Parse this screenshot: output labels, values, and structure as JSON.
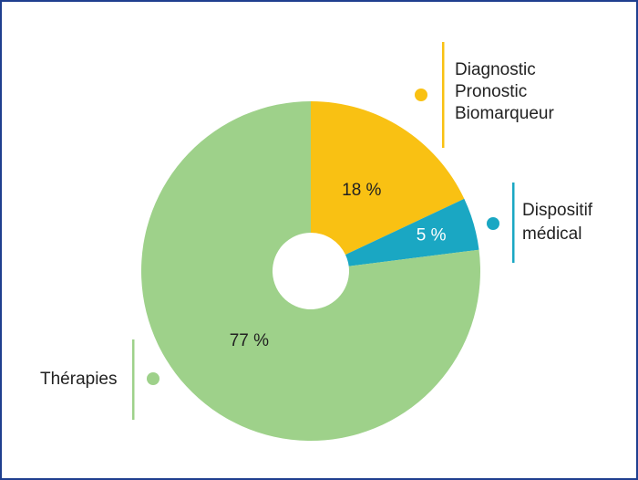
{
  "chart_data": {
    "type": "pie",
    "donut": true,
    "title": "",
    "slices": [
      {
        "name": "Diagnostic Pronostic Biomarqueur",
        "label_lines": [
          "Diagnostic",
          "Pronostic",
          "Biomarqueur"
        ],
        "value": 18,
        "value_label": "18 %",
        "color": "#f9c113",
        "value_label_color": "#222222"
      },
      {
        "name": "Dispositif médical",
        "label_lines": [
          "Dispositif",
          "médical"
        ],
        "value": 5,
        "value_label": "5 %",
        "color": "#1aa7c3",
        "value_label_color": "#ffffff"
      },
      {
        "name": "Thérapies",
        "label_lines": [
          "Thérapies"
        ],
        "value": 77,
        "value_label": "77 %",
        "color": "#9ed18a",
        "value_label_color": "#222222"
      }
    ],
    "start_angle_deg": 0,
    "direction": "clockwise",
    "legend_placement": "beside-slices"
  },
  "colors": {
    "border": "#1f3f8f",
    "background": "#ffffff"
  }
}
